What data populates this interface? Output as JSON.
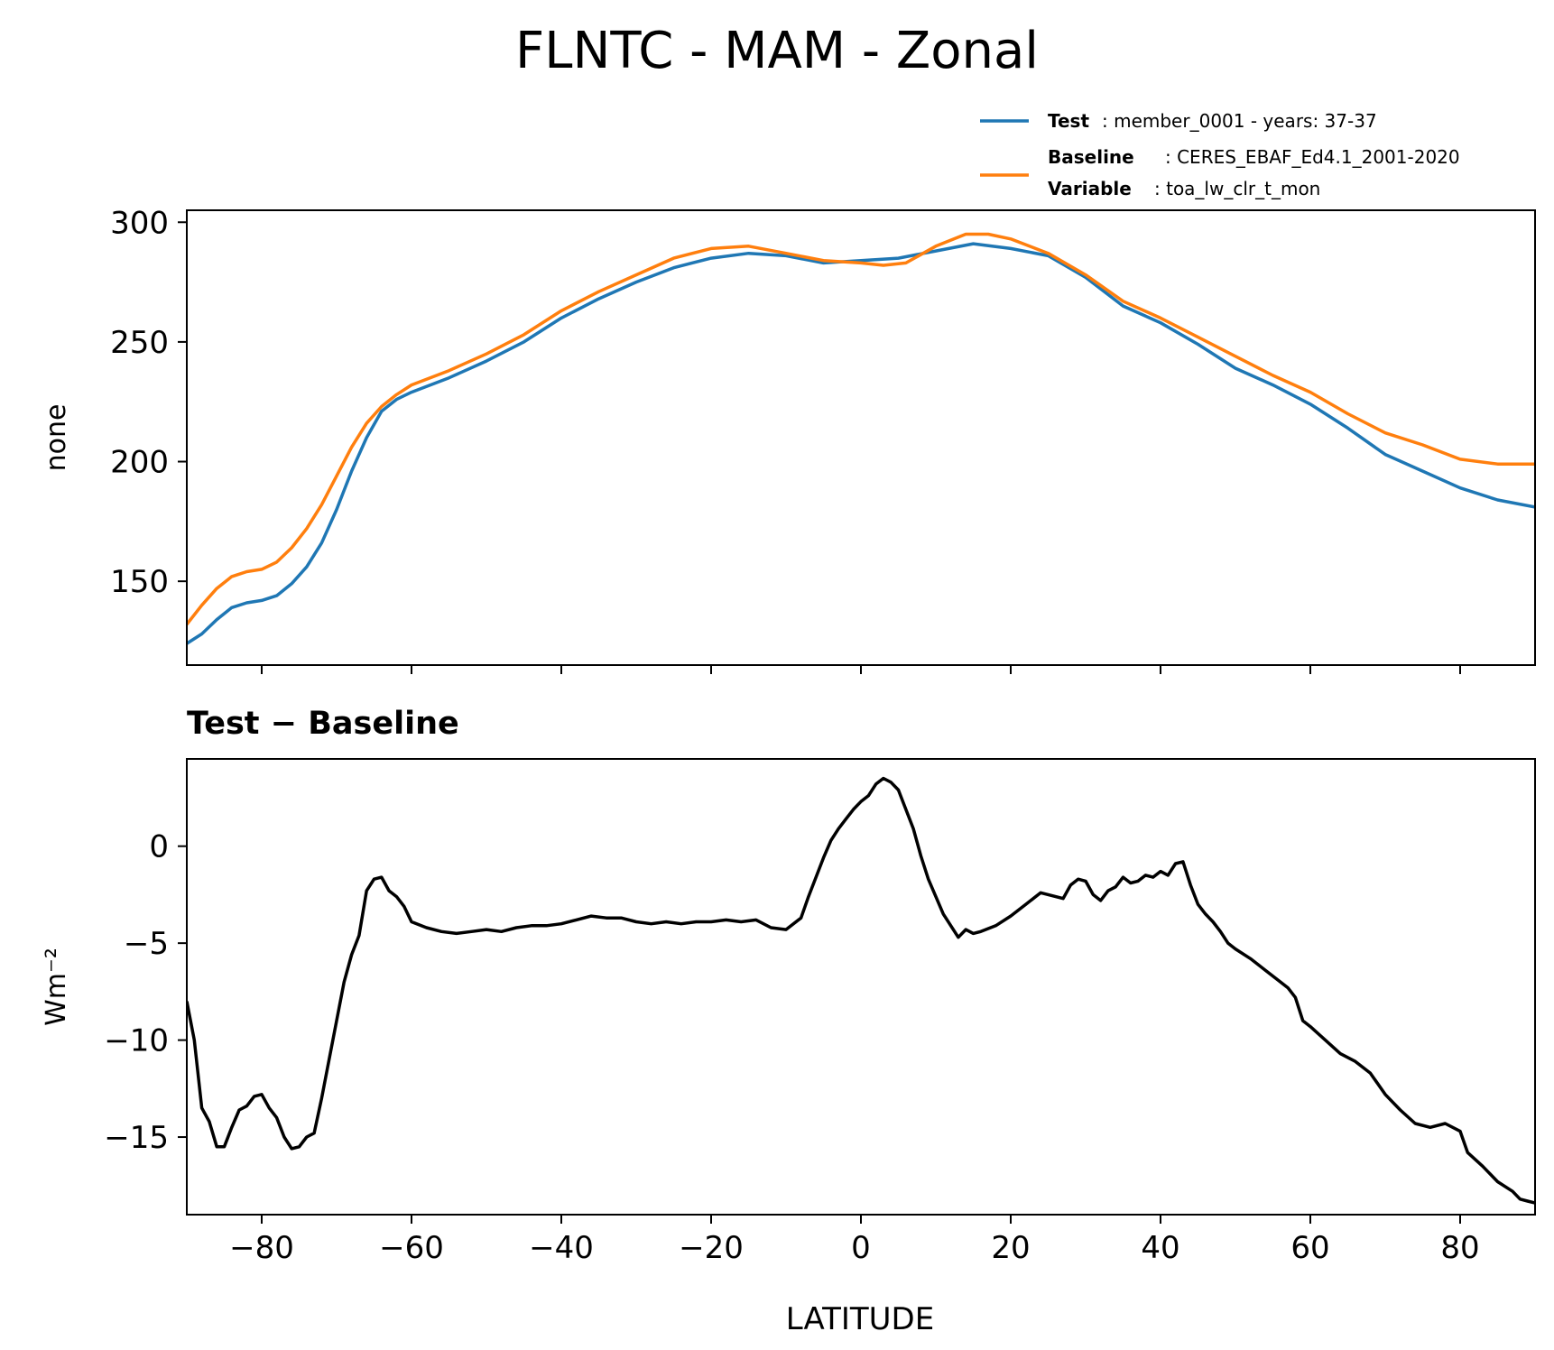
{
  "figure": {
    "title": "FLNTC - MAM - Zonal"
  },
  "legend": {
    "test_label": "Test",
    "test_text": ": member_0001 - years: 37-37",
    "baseline_label": "Baseline",
    "baseline_text": ": CERES_EBAF_Ed4.1_2001-2020",
    "variable_label": "Variable",
    "variable_text": ": toa_lw_clr_t_mon"
  },
  "colors": {
    "test": "#1f77b4",
    "baseline": "#ff7f0e",
    "diff": "#000000"
  },
  "chart_data": [
    {
      "type": "line",
      "ylabel": "none",
      "xlim": [
        -90,
        90
      ],
      "ylim": [
        115,
        305
      ],
      "x_ticks": [
        -80,
        -60,
        -40,
        -20,
        0,
        20,
        40,
        60,
        80
      ],
      "y_ticks": [
        150,
        200,
        250,
        300
      ],
      "y_tick_labels": [
        "150",
        "200",
        "250",
        "300"
      ],
      "series": [
        {
          "name": "Test",
          "color": "#1f77b4",
          "points": [
            [
              -90,
              124
            ],
            [
              -88,
              128
            ],
            [
              -86,
              134
            ],
            [
              -84,
              139
            ],
            [
              -82,
              141
            ],
            [
              -80,
              142
            ],
            [
              -78,
              144
            ],
            [
              -76,
              149
            ],
            [
              -74,
              156
            ],
            [
              -72,
              166
            ],
            [
              -70,
              180
            ],
            [
              -68,
              196
            ],
            [
              -66,
              210
            ],
            [
              -64,
              221
            ],
            [
              -62,
              226
            ],
            [
              -60,
              229
            ],
            [
              -55,
              235
            ],
            [
              -50,
              242
            ],
            [
              -45,
              250
            ],
            [
              -40,
              260
            ],
            [
              -35,
              268
            ],
            [
              -30,
              275
            ],
            [
              -25,
              281
            ],
            [
              -20,
              285
            ],
            [
              -15,
              287
            ],
            [
              -10,
              286
            ],
            [
              -5,
              283
            ],
            [
              0,
              284
            ],
            [
              5,
              285
            ],
            [
              10,
              288
            ],
            [
              15,
              291
            ],
            [
              20,
              289
            ],
            [
              25,
              286
            ],
            [
              30,
              277
            ],
            [
              35,
              265
            ],
            [
              40,
              258
            ],
            [
              45,
              249
            ],
            [
              50,
              239
            ],
            [
              55,
              232
            ],
            [
              60,
              224
            ],
            [
              65,
              214
            ],
            [
              70,
              203
            ],
            [
              75,
              196
            ],
            [
              80,
              189
            ],
            [
              85,
              184
            ],
            [
              90,
              181
            ]
          ]
        },
        {
          "name": "Baseline",
          "color": "#ff7f0e",
          "points": [
            [
              -90,
              132
            ],
            [
              -88,
              140
            ],
            [
              -86,
              147
            ],
            [
              -84,
              152
            ],
            [
              -82,
              154
            ],
            [
              -80,
              155
            ],
            [
              -78,
              158
            ],
            [
              -76,
              164
            ],
            [
              -74,
              172
            ],
            [
              -72,
              182
            ],
            [
              -70,
              194
            ],
            [
              -68,
              206
            ],
            [
              -66,
              216
            ],
            [
              -64,
              223
            ],
            [
              -62,
              228
            ],
            [
              -60,
              232
            ],
            [
              -55,
              238
            ],
            [
              -50,
              245
            ],
            [
              -45,
              253
            ],
            [
              -40,
              263
            ],
            [
              -35,
              271
            ],
            [
              -30,
              278
            ],
            [
              -25,
              285
            ],
            [
              -20,
              289
            ],
            [
              -15,
              290
            ],
            [
              -10,
              287
            ],
            [
              -5,
              284
            ],
            [
              0,
              283
            ],
            [
              3,
              282
            ],
            [
              6,
              283
            ],
            [
              10,
              290
            ],
            [
              14,
              295
            ],
            [
              17,
              295
            ],
            [
              20,
              293
            ],
            [
              25,
              287
            ],
            [
              30,
              278
            ],
            [
              35,
              267
            ],
            [
              40,
              260
            ],
            [
              45,
              252
            ],
            [
              50,
              244
            ],
            [
              55,
              236
            ],
            [
              60,
              229
            ],
            [
              65,
              220
            ],
            [
              70,
              212
            ],
            [
              75,
              207
            ],
            [
              80,
              201
            ],
            [
              85,
              199
            ],
            [
              90,
              199
            ]
          ]
        }
      ]
    },
    {
      "type": "line",
      "title": "Test − Baseline",
      "ylabel": "Wm⁻²",
      "xlabel": "LATITUDE",
      "xlim": [
        -90,
        90
      ],
      "ylim": [
        -19,
        4.5
      ],
      "x_ticks": [
        -80,
        -60,
        -40,
        -20,
        0,
        20,
        40,
        60,
        80
      ],
      "x_tick_labels": [
        "−80",
        "−60",
        "−40",
        "−20",
        "0",
        "20",
        "40",
        "60",
        "80"
      ],
      "y_ticks": [
        -15,
        -10,
        -5,
        0
      ],
      "y_tick_labels": [
        "−15",
        "−10",
        "−5",
        "0"
      ],
      "series": [
        {
          "name": "Test − Baseline",
          "color": "#000000",
          "points": [
            [
              -90,
              -8
            ],
            [
              -89,
              -10
            ],
            [
              -88,
              -13.5
            ],
            [
              -87,
              -14.2
            ],
            [
              -86,
              -15.5
            ],
            [
              -85,
              -15.5
            ],
            [
              -84,
              -14.5
            ],
            [
              -83,
              -13.6
            ],
            [
              -82,
              -13.4
            ],
            [
              -81,
              -12.9
            ],
            [
              -80,
              -12.8
            ],
            [
              -79,
              -13.5
            ],
            [
              -78,
              -14
            ],
            [
              -77,
              -15
            ],
            [
              -76,
              -15.6
            ],
            [
              -75,
              -15.5
            ],
            [
              -74,
              -15
            ],
            [
              -73,
              -14.8
            ],
            [
              -72,
              -13
            ],
            [
              -71,
              -11
            ],
            [
              -70,
              -9
            ],
            [
              -69,
              -7
            ],
            [
              -68,
              -5.6
            ],
            [
              -67,
              -4.6
            ],
            [
              -66,
              -2.3
            ],
            [
              -65,
              -1.7
            ],
            [
              -64,
              -1.6
            ],
            [
              -63,
              -2.3
            ],
            [
              -62,
              -2.6
            ],
            [
              -61,
              -3.1
            ],
            [
              -60,
              -3.9
            ],
            [
              -58,
              -4.2
            ],
            [
              -56,
              -4.4
            ],
            [
              -54,
              -4.5
            ],
            [
              -52,
              -4.4
            ],
            [
              -50,
              -4.3
            ],
            [
              -48,
              -4.4
            ],
            [
              -46,
              -4.2
            ],
            [
              -44,
              -4.1
            ],
            [
              -42,
              -4.1
            ],
            [
              -40,
              -4
            ],
            [
              -38,
              -3.8
            ],
            [
              -36,
              -3.6
            ],
            [
              -34,
              -3.7
            ],
            [
              -32,
              -3.7
            ],
            [
              -30,
              -3.9
            ],
            [
              -28,
              -4
            ],
            [
              -26,
              -3.9
            ],
            [
              -24,
              -4
            ],
            [
              -22,
              -3.9
            ],
            [
              -20,
              -3.9
            ],
            [
              -18,
              -3.8
            ],
            [
              -16,
              -3.9
            ],
            [
              -14,
              -3.8
            ],
            [
              -12,
              -4.2
            ],
            [
              -10,
              -4.3
            ],
            [
              -8,
              -3.7
            ],
            [
              -7,
              -2.6
            ],
            [
              -6,
              -1.6
            ],
            [
              -5,
              -0.6
            ],
            [
              -4,
              0.3
            ],
            [
              -3,
              0.9
            ],
            [
              -2,
              1.4
            ],
            [
              -1,
              1.9
            ],
            [
              0,
              2.3
            ],
            [
              1,
              2.6
            ],
            [
              2,
              3.2
            ],
            [
              3,
              3.5
            ],
            [
              4,
              3.3
            ],
            [
              5,
              2.9
            ],
            [
              6,
              1.9
            ],
            [
              7,
              0.9
            ],
            [
              8,
              -0.5
            ],
            [
              9,
              -1.7
            ],
            [
              10,
              -2.6
            ],
            [
              11,
              -3.5
            ],
            [
              12,
              -4.1
            ],
            [
              13,
              -4.7
            ],
            [
              14,
              -4.3
            ],
            [
              15,
              -4.5
            ],
            [
              16,
              -4.4
            ],
            [
              18,
              -4.1
            ],
            [
              20,
              -3.6
            ],
            [
              22,
              -3
            ],
            [
              24,
              -2.4
            ],
            [
              26,
              -2.6
            ],
            [
              27,
              -2.7
            ],
            [
              28,
              -2
            ],
            [
              29,
              -1.7
            ],
            [
              30,
              -1.8
            ],
            [
              31,
              -2.5
            ],
            [
              32,
              -2.8
            ],
            [
              33,
              -2.3
            ],
            [
              34,
              -2.1
            ],
            [
              35,
              -1.6
            ],
            [
              36,
              -1.9
            ],
            [
              37,
              -1.8
            ],
            [
              38,
              -1.5
            ],
            [
              39,
              -1.6
            ],
            [
              40,
              -1.3
            ],
            [
              41,
              -1.5
            ],
            [
              42,
              -0.9
            ],
            [
              43,
              -0.8
            ],
            [
              44,
              -2
            ],
            [
              45,
              -3
            ],
            [
              46,
              -3.5
            ],
            [
              47,
              -3.9
            ],
            [
              48,
              -4.4
            ],
            [
              49,
              -5
            ],
            [
              50,
              -5.3
            ],
            [
              52,
              -5.8
            ],
            [
              54,
              -6.4
            ],
            [
              56,
              -7
            ],
            [
              57,
              -7.3
            ],
            [
              58,
              -7.8
            ],
            [
              59,
              -9
            ],
            [
              60,
              -9.3
            ],
            [
              62,
              -10
            ],
            [
              64,
              -10.7
            ],
            [
              66,
              -11.1
            ],
            [
              68,
              -11.7
            ],
            [
              70,
              -12.8
            ],
            [
              72,
              -13.6
            ],
            [
              74,
              -14.3
            ],
            [
              76,
              -14.5
            ],
            [
              78,
              -14.3
            ],
            [
              80,
              -14.7
            ],
            [
              81,
              -15.8
            ],
            [
              83,
              -16.5
            ],
            [
              85,
              -17.3
            ],
            [
              87,
              -17.8
            ],
            [
              88,
              -18.2
            ],
            [
              89,
              -18.3
            ],
            [
              90,
              -18.4
            ]
          ]
        }
      ]
    }
  ]
}
